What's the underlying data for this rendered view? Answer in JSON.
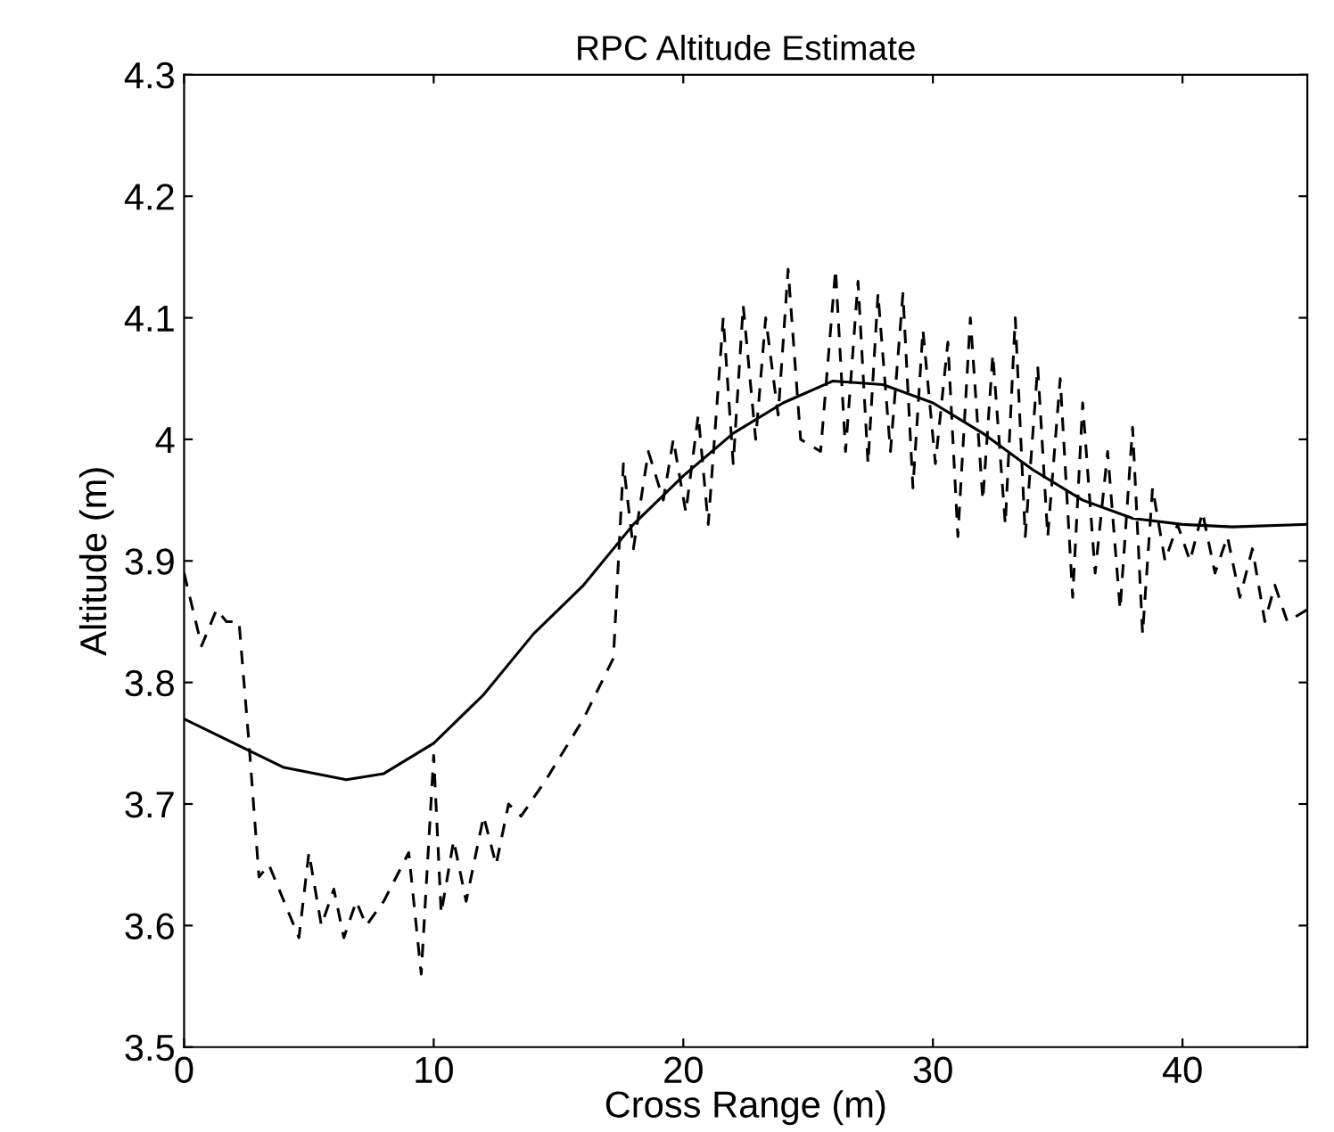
{
  "chart_data": {
    "type": "line",
    "title": "RPC Altitude Estimate",
    "xlabel": "Cross Range (m)",
    "ylabel": "Altitude (m)",
    "xlim": [
      0,
      45
    ],
    "xticks": [
      0,
      10,
      20,
      30,
      40
    ],
    "ylim": [
      3.5,
      4.3
    ],
    "yticks": [
      3.5,
      3.6,
      3.7,
      3.8,
      3.9,
      {
        "value": 4.0,
        "label": "4"
      },
      4.1,
      4.2,
      4.3
    ],
    "grid": false,
    "legend": false,
    "marker": "none",
    "series": [
      {
        "color": "#000000",
        "line_style": "solid",
        "x": [
          0,
          2,
          4,
          6.5,
          8,
          10,
          12,
          14,
          16,
          18,
          20,
          22,
          24,
          26,
          28,
          30,
          32,
          34,
          36,
          38,
          40,
          42,
          45
        ],
        "values": [
          3.77,
          3.75,
          3.73,
          3.72,
          3.725,
          3.75,
          3.79,
          3.84,
          3.88,
          3.93,
          3.97,
          4.005,
          4.03,
          4.048,
          4.045,
          4.03,
          4.005,
          3.975,
          3.95,
          3.935,
          3.93,
          3.928,
          3.93
        ]
      },
      {
        "color": "#000000",
        "line_style": "dashed",
        "x": [
          0,
          0.7,
          1.3,
          1.7,
          2.2,
          2.6,
          3.0,
          3.4,
          4.0,
          4.6,
          5.0,
          5.5,
          6.0,
          6.4,
          6.9,
          7.3,
          8,
          9,
          9.5,
          10,
          10.3,
          10.8,
          11.3,
          12,
          12.5,
          13,
          13.5,
          14.5,
          16,
          17.2,
          17.6,
          18,
          18.6,
          19.2,
          19.6,
          20.1,
          20.6,
          21,
          21.6,
          22,
          22.4,
          22.9,
          23.3,
          23.8,
          24.2,
          24.7,
          25.5,
          26.1,
          26.5,
          27,
          27.4,
          27.8,
          28.3,
          28.8,
          29.2,
          29.6,
          30.1,
          30.6,
          31,
          31.5,
          32,
          32.4,
          32.9,
          33.3,
          33.7,
          34.2,
          34.6,
          35.1,
          35.6,
          36,
          36.5,
          37,
          37.5,
          38,
          38.4,
          38.8,
          39.3,
          39.8,
          40.3,
          40.8,
          41.3,
          41.8,
          42.3,
          42.8,
          43.3,
          43.7,
          44.2,
          45
        ],
        "values": [
          3.89,
          3.83,
          3.86,
          3.85,
          3.85,
          3.75,
          3.64,
          3.65,
          3.62,
          3.59,
          3.66,
          3.6,
          3.63,
          3.59,
          3.62,
          3.6,
          3.62,
          3.66,
          3.56,
          3.74,
          3.61,
          3.67,
          3.62,
          3.69,
          3.65,
          3.7,
          3.69,
          3.72,
          3.77,
          3.82,
          3.98,
          3.91,
          3.99,
          3.95,
          4.0,
          3.94,
          4.02,
          3.93,
          4.1,
          3.98,
          4.11,
          4.0,
          4.1,
          4.02,
          4.14,
          4.0,
          3.99,
          4.14,
          3.99,
          4.13,
          3.98,
          4.12,
          3.99,
          4.12,
          3.96,
          4.09,
          3.98,
          4.08,
          3.92,
          4.1,
          3.95,
          4.07,
          3.93,
          4.1,
          3.92,
          4.06,
          3.92,
          4.05,
          3.87,
          4.03,
          3.89,
          3.99,
          3.86,
          4.01,
          3.84,
          3.96,
          3.9,
          3.93,
          3.9,
          3.94,
          3.89,
          3.92,
          3.87,
          3.91,
          3.85,
          3.88,
          3.85,
          3.86
        ]
      }
    ]
  }
}
